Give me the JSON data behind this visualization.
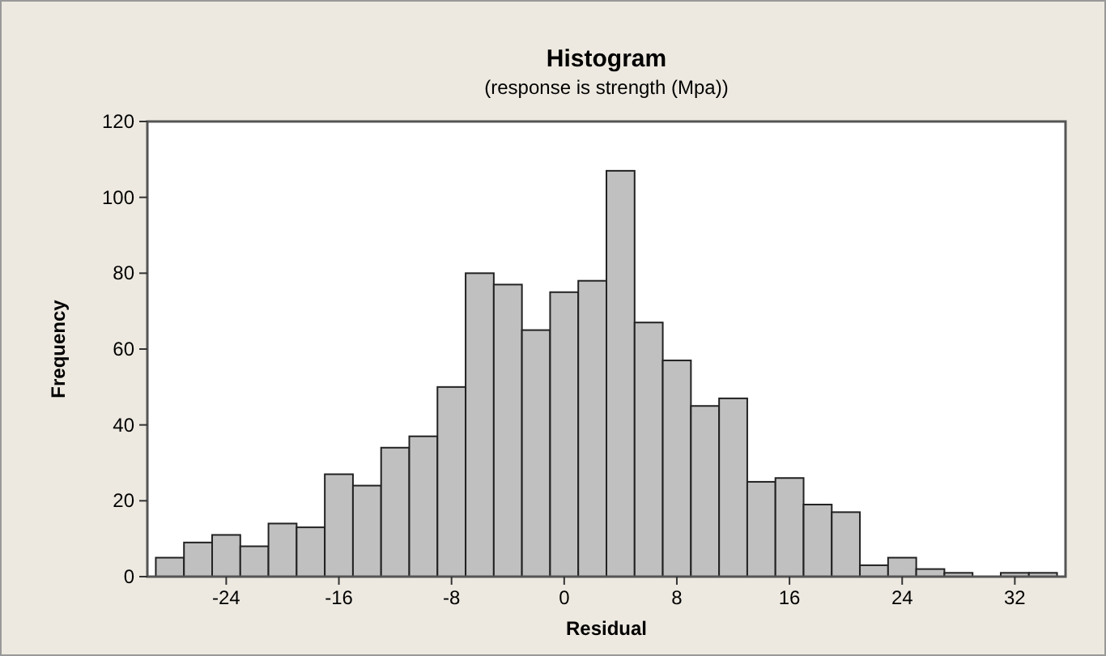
{
  "chart_data": {
    "type": "histogram",
    "title": "Histogram",
    "subtitle": "(response is strength (Mpa))",
    "xlabel": "Residual",
    "ylabel": "Frequency",
    "bins": [
      -29,
      -27,
      -25,
      -23,
      -21,
      -19,
      -17,
      -15,
      -13,
      -11,
      -9,
      -7,
      -5,
      -3,
      -1,
      1,
      3,
      5,
      7,
      9,
      11,
      13,
      15,
      17,
      19,
      21,
      23,
      25,
      27,
      29,
      31,
      33,
      35
    ],
    "values": [
      5,
      9,
      11,
      8,
      14,
      13,
      27,
      24,
      34,
      37,
      50,
      80,
      77,
      65,
      75,
      78,
      107,
      67,
      57,
      45,
      47,
      25,
      26,
      19,
      17,
      3,
      5,
      2,
      1,
      0,
      1,
      1
    ],
    "color": "#c0c0c0",
    "xlim": [
      -29.6,
      35.6
    ],
    "xticks": [
      -24,
      -16,
      -8,
      0,
      8,
      16,
      24,
      32
    ],
    "ylim": [
      0,
      120
    ],
    "yticks": [
      0,
      20,
      40,
      60,
      80,
      100,
      120
    ]
  }
}
